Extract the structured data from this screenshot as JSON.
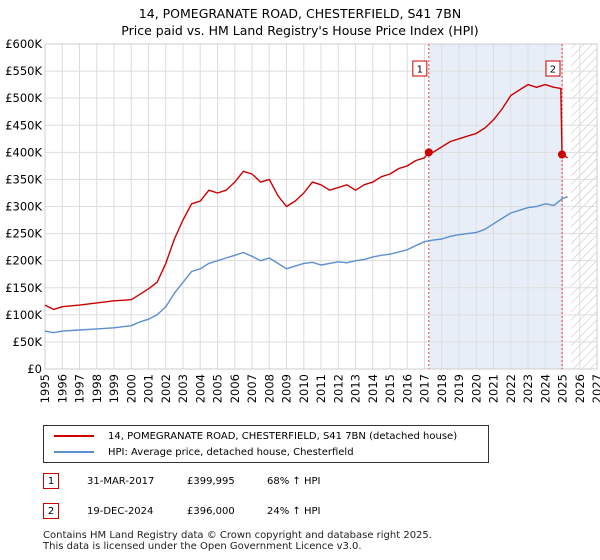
{
  "title_line1": "14, POMEGRANATE ROAD, CHESTERFIELD, S41 7BN",
  "title_line2": "Price paid vs. HM Land Registry's House Price Index (HPI)",
  "colors": {
    "property": "#cc0000",
    "hpi": "#5b8fd0",
    "shade": "#e8eef8",
    "marker": "#ee4444"
  },
  "chart_data": {
    "type": "line",
    "xlim": [
      1995,
      2027
    ],
    "ylim": [
      0,
      600000
    ],
    "y_ticks": [
      0,
      50000,
      100000,
      150000,
      200000,
      250000,
      300000,
      350000,
      400000,
      450000,
      500000,
      550000,
      600000
    ],
    "y_tick_labels": [
      "£0",
      "£50K",
      "£100K",
      "£150K",
      "£200K",
      "£250K",
      "£300K",
      "£350K",
      "£400K",
      "£450K",
      "£500K",
      "£550K",
      "£600K"
    ],
    "x_ticks": [
      1995,
      1996,
      1997,
      1998,
      1999,
      2000,
      2001,
      2002,
      2003,
      2004,
      2005,
      2006,
      2007,
      2008,
      2009,
      2010,
      2011,
      2012,
      2013,
      2014,
      2015,
      2016,
      2017,
      2018,
      2019,
      2020,
      2021,
      2022,
      2023,
      2024,
      2025,
      2026,
      2027
    ],
    "shaded_span": [
      2017.25,
      2024.97
    ],
    "hatch_from": 2025.5,
    "series": [
      {
        "name": "14, POMEGRANATE ROAD, CHESTERFIELD, S41 7BN (detached house)",
        "x": [
          1995,
          1995.5,
          1996,
          1997,
          1998,
          1999,
          2000,
          2000.5,
          2001,
          2001.5,
          2002,
          2002.5,
          2003,
          2003.5,
          2004,
          2004.5,
          2005,
          2005.5,
          2006,
          2006.5,
          2007,
          2007.5,
          2008,
          2008.5,
          2009,
          2009.5,
          2010,
          2010.5,
          2011,
          2011.5,
          2012,
          2012.5,
          2013,
          2013.5,
          2014,
          2014.5,
          2015,
          2015.5,
          2016,
          2016.5,
          2017,
          2017.25,
          2017.5,
          2018,
          2018.5,
          2019,
          2019.5,
          2020,
          2020.5,
          2021,
          2021.5,
          2022,
          2022.5,
          2023,
          2023.5,
          2024,
          2024.5,
          2024.9,
          2024.97,
          2025.3
        ],
        "values": [
          118000,
          110000,
          115000,
          118000,
          122000,
          126000,
          128000,
          138000,
          148000,
          160000,
          195000,
          240000,
          275000,
          305000,
          310000,
          330000,
          325000,
          330000,
          345000,
          365000,
          360000,
          345000,
          350000,
          320000,
          300000,
          310000,
          325000,
          345000,
          340000,
          330000,
          335000,
          340000,
          330000,
          340000,
          345000,
          355000,
          360000,
          370000,
          375000,
          385000,
          390000,
          399995,
          400000,
          410000,
          420000,
          425000,
          430000,
          435000,
          445000,
          460000,
          480000,
          505000,
          515000,
          525000,
          520000,
          525000,
          520000,
          518000,
          396000,
          390000
        ]
      },
      {
        "name": "HPI: Average price, detached house, Chesterfield",
        "x": [
          1995,
          1995.5,
          1996,
          1997,
          1998,
          1999,
          2000,
          2000.5,
          2001,
          2001.5,
          2002,
          2002.5,
          2003,
          2003.5,
          2004,
          2004.5,
          2005,
          2005.5,
          2006,
          2006.5,
          2007,
          2007.5,
          2008,
          2008.5,
          2009,
          2009.5,
          2010,
          2010.5,
          2011,
          2011.5,
          2012,
          2012.5,
          2013,
          2013.5,
          2014,
          2014.5,
          2015,
          2015.5,
          2016,
          2016.5,
          2017,
          2017.5,
          2018,
          2018.5,
          2019,
          2019.5,
          2020,
          2020.5,
          2021,
          2021.5,
          2022,
          2022.5,
          2023,
          2023.5,
          2024,
          2024.5,
          2025,
          2025.3
        ],
        "values": [
          70000,
          67000,
          70000,
          72000,
          74000,
          76000,
          80000,
          87000,
          92000,
          100000,
          115000,
          140000,
          160000,
          180000,
          185000,
          195000,
          200000,
          205000,
          210000,
          215000,
          208000,
          200000,
          205000,
          195000,
          185000,
          190000,
          195000,
          197000,
          192000,
          195000,
          198000,
          196000,
          200000,
          202000,
          207000,
          210000,
          212000,
          216000,
          220000,
          228000,
          235000,
          238000,
          240000,
          245000,
          248000,
          250000,
          252000,
          258000,
          268000,
          278000,
          288000,
          293000,
          298000,
          300000,
          305000,
          302000,
          315000,
          318000
        ]
      }
    ],
    "sales": [
      {
        "label": "1",
        "x": 2017.25,
        "value": 399995
      },
      {
        "label": "2",
        "x": 2024.97,
        "value": 396000
      }
    ]
  },
  "legend": {
    "property": "14, POMEGRANATE ROAD, CHESTERFIELD, S41 7BN (detached house)",
    "hpi": "HPI: Average price, detached house, Chesterfield"
  },
  "annotations": [
    {
      "num": "1",
      "date": "31-MAR-2017",
      "price": "£399,995",
      "pct": "68% ↑ HPI"
    },
    {
      "num": "2",
      "date": "19-DEC-2024",
      "price": "£396,000",
      "pct": "24% ↑ HPI"
    }
  ],
  "footer_line1": "Contains HM Land Registry data © Crown copyright and database right 2025.",
  "footer_line2": "This data is licensed under the Open Government Licence v3.0."
}
